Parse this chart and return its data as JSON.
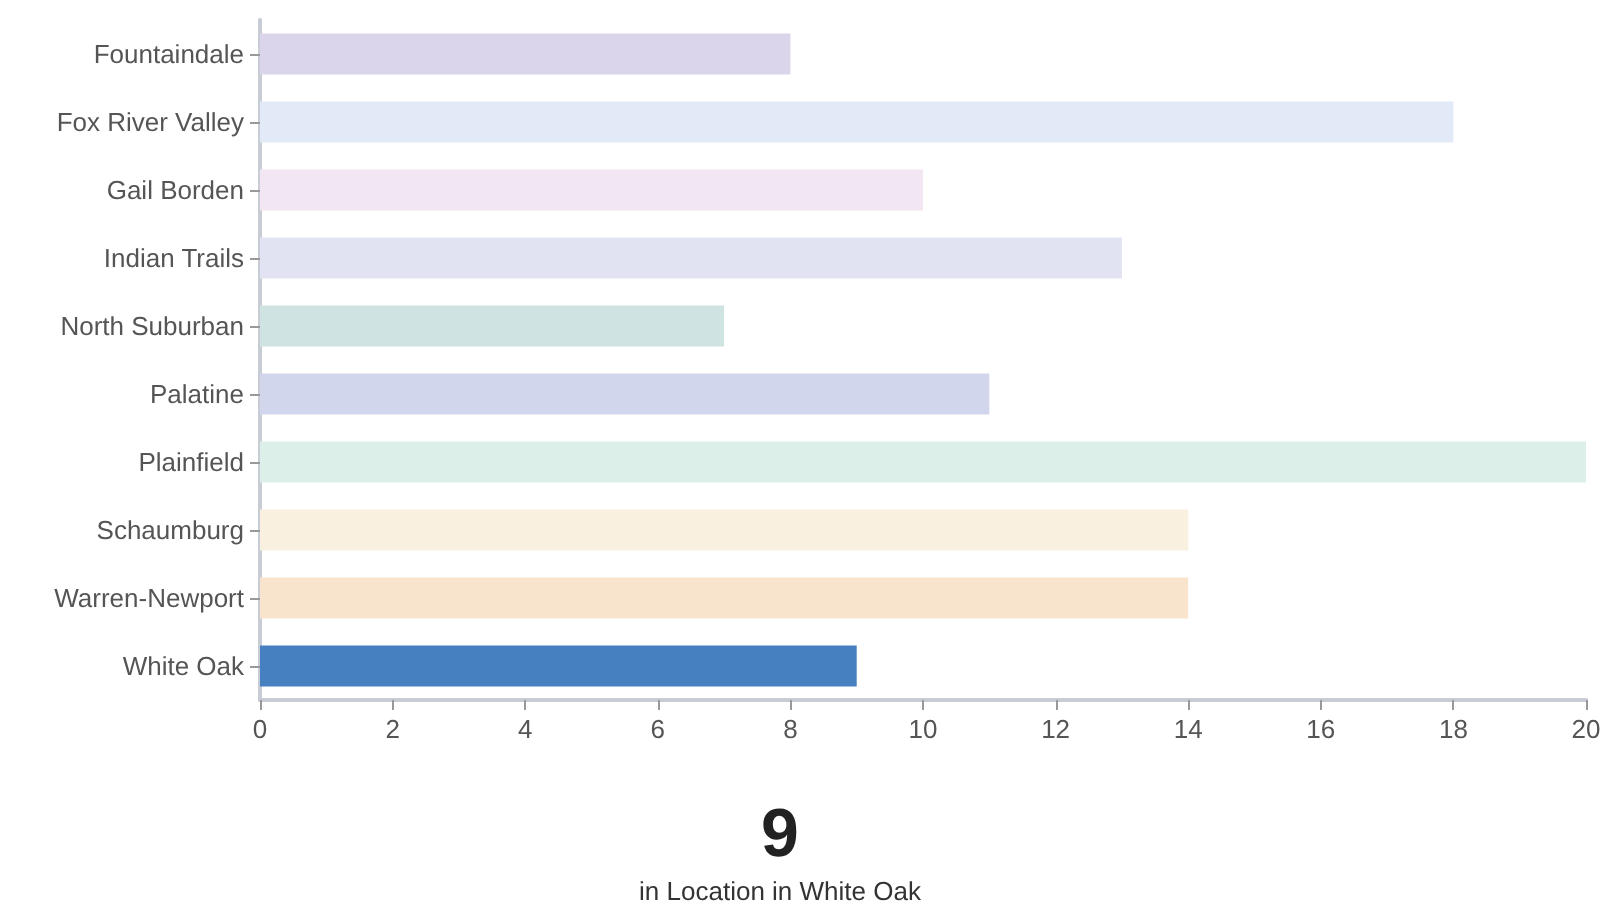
{
  "chart_data": {
    "type": "bar",
    "orientation": "horizontal",
    "categories": [
      "Fountaindale",
      "Fox River Valley",
      "Gail Borden",
      "Indian Trails",
      "North Suburban",
      "Palatine",
      "Plainfield",
      "Schaumburg",
      "Warren-Newport",
      "White Oak"
    ],
    "values": [
      8,
      18,
      10,
      13,
      7,
      11,
      20,
      14,
      14,
      9
    ],
    "colors": [
      "#dad5ea",
      "#e3eaf7",
      "#f1e6f2",
      "#e1e3f3",
      "#cfe4e2",
      "#d2d6ec",
      "#dcf0e9",
      "#f9f0df",
      "#f8e3cc",
      "#4680c0"
    ],
    "xlim": [
      0,
      20
    ],
    "xticks": [
      0,
      2,
      4,
      6,
      8,
      10,
      12,
      14,
      16,
      18,
      20
    ],
    "annotations": [
      "9",
      "in Location in White Oak"
    ]
  }
}
